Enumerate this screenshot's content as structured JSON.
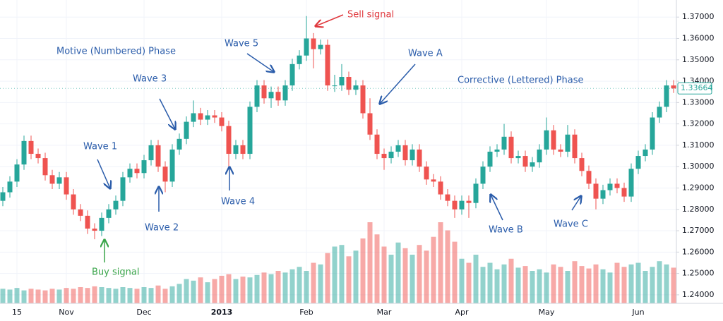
{
  "chart_data": {
    "type": "candlestick",
    "categories": [
      null,
      null,
      "15",
      null,
      null,
      null,
      null,
      null,
      null,
      "Nov",
      null,
      null,
      null,
      null,
      null,
      null,
      null,
      null,
      null,
      null,
      "Dec",
      null,
      null,
      null,
      null,
      null,
      null,
      null,
      null,
      null,
      null,
      "2013",
      null,
      null,
      null,
      null,
      null,
      null,
      null,
      null,
      null,
      null,
      null,
      "Feb",
      null,
      null,
      null,
      null,
      null,
      null,
      null,
      null,
      null,
      null,
      "Mar",
      null,
      null,
      null,
      null,
      null,
      null,
      null,
      null,
      null,
      null,
      "Apr",
      null,
      null,
      null,
      null,
      null,
      null,
      null,
      null,
      null,
      null,
      null,
      "May",
      null,
      null,
      null,
      null,
      null,
      null,
      null,
      null,
      null,
      null,
      null,
      null,
      "Jun",
      null,
      null,
      null,
      null,
      null
    ],
    "open": [
      1.284,
      1.288,
      1.293,
      1.301,
      1.312,
      1.306,
      1.304,
      1.296,
      1.292,
      1.295,
      1.287,
      1.28,
      1.277,
      1.271,
      1.27,
      1.276,
      1.28,
      1.284,
      1.295,
      1.299,
      1.297,
      1.303,
      1.31,
      1.3,
      1.293,
      1.308,
      1.313,
      1.321,
      1.325,
      1.322,
      1.324,
      1.323,
      1.319,
      1.306,
      1.31,
      1.306,
      1.328,
      1.338,
      1.332,
      1.335,
      1.331,
      1.338,
      1.348,
      1.352,
      1.36,
      1.355,
      1.357,
      1.338,
      1.338,
      1.342,
      1.336,
      1.338,
      1.325,
      1.315,
      1.306,
      1.304,
      1.307,
      1.31,
      1.303,
      1.308,
      1.3,
      1.294,
      1.293,
      1.287,
      1.284,
      1.28,
      1.284,
      1.283,
      1.292,
      1.3,
      1.307,
      1.308,
      1.314,
      1.304,
      1.305,
      1.3,
      1.302,
      1.308,
      1.317,
      1.308,
      1.307,
      1.315,
      1.304,
      1.298,
      1.292,
      1.285,
      1.289,
      1.292,
      1.29,
      1.286,
      1.299,
      1.305,
      1.308,
      1.323,
      1.328,
      1.338
    ],
    "high": [
      1.2905,
      1.2955,
      1.3035,
      1.3145,
      1.3145,
      1.3085,
      1.3065,
      1.2985,
      1.2975,
      1.2975,
      1.2895,
      1.2825,
      1.2795,
      1.2735,
      1.2785,
      1.2825,
      1.2865,
      1.2975,
      1.3015,
      1.3015,
      1.3055,
      1.3125,
      1.3125,
      1.3025,
      1.3105,
      1.3155,
      1.3235,
      1.331,
      1.3275,
      1.3265,
      1.3265,
      1.3255,
      1.3215,
      1.3125,
      1.3125,
      1.3305,
      1.3405,
      1.3405,
      1.3375,
      1.3375,
      1.3405,
      1.3505,
      1.3545,
      1.3705,
      1.3625,
      1.3595,
      1.3595,
      1.343,
      1.348,
      1.3445,
      1.3405,
      1.3405,
      1.332,
      1.3175,
      1.3085,
      1.3095,
      1.3125,
      1.3125,
      1.3105,
      1.3105,
      1.3025,
      1.2965,
      1.2955,
      1.2895,
      1.2865,
      1.2865,
      1.2865,
      1.2945,
      1.3025,
      1.3095,
      1.3105,
      1.32,
      1.3165,
      1.3075,
      1.3075,
      1.3045,
      1.3105,
      1.323,
      1.3195,
      1.3105,
      1.3195,
      1.3175,
      1.3065,
      1.3005,
      1.2945,
      1.2915,
      1.2945,
      1.2945,
      1.2925,
      1.3015,
      1.3075,
      1.3105,
      1.3255,
      1.3305,
      1.3405,
      1.3405
    ],
    "low": [
      1.2815,
      1.2855,
      1.2905,
      1.2985,
      1.3035,
      1.3015,
      1.2935,
      1.2895,
      1.2895,
      1.2845,
      1.2775,
      1.2745,
      1.2685,
      1.266,
      1.2675,
      1.2735,
      1.2775,
      1.2815,
      1.2925,
      1.2945,
      1.2945,
      1.3005,
      1.2975,
      1.288,
      1.2905,
      1.3055,
      1.3105,
      1.3185,
      1.3195,
      1.3195,
      1.3205,
      1.3165,
      1.3,
      1.3035,
      1.3035,
      1.3035,
      1.3255,
      1.3295,
      1.3275,
      1.3285,
      1.3285,
      1.3355,
      1.3455,
      1.3495,
      1.346,
      1.3525,
      1.3355,
      1.335,
      1.3355,
      1.3335,
      1.3335,
      1.3225,
      1.3125,
      1.3035,
      1.2985,
      1.3015,
      1.3045,
      1.3005,
      1.3005,
      1.2975,
      1.2915,
      1.2905,
      1.2845,
      1.2815,
      1.276,
      1.2775,
      1.276,
      1.2805,
      1.2895,
      1.2975,
      1.3045,
      1.3055,
      1.3015,
      1.3015,
      1.2975,
      1.2975,
      1.2995,
      1.3055,
      1.3055,
      1.3045,
      1.3045,
      1.3015,
      1.2955,
      1.2895,
      1.28,
      1.2825,
      1.2865,
      1.2875,
      1.2835,
      1.2835,
      1.2965,
      1.3025,
      1.3055,
      1.3205,
      1.3255,
      1.3345
    ],
    "close": [
      1.288,
      1.293,
      1.301,
      1.312,
      1.306,
      1.304,
      1.296,
      1.292,
      1.295,
      1.287,
      1.28,
      1.277,
      1.271,
      1.27,
      1.276,
      1.28,
      1.284,
      1.295,
      1.299,
      1.297,
      1.303,
      1.31,
      1.3,
      1.293,
      1.308,
      1.313,
      1.321,
      1.325,
      1.322,
      1.324,
      1.323,
      1.319,
      1.306,
      1.31,
      1.306,
      1.328,
      1.338,
      1.332,
      1.335,
      1.331,
      1.338,
      1.348,
      1.352,
      1.36,
      1.355,
      1.357,
      1.338,
      1.338,
      1.342,
      1.336,
      1.338,
      1.325,
      1.315,
      1.306,
      1.304,
      1.307,
      1.31,
      1.303,
      1.308,
      1.3,
      1.294,
      1.293,
      1.287,
      1.284,
      1.28,
      1.284,
      1.283,
      1.292,
      1.3,
      1.307,
      1.308,
      1.314,
      1.304,
      1.305,
      1.3,
      1.302,
      1.308,
      1.317,
      1.308,
      1.307,
      1.315,
      1.304,
      1.298,
      1.292,
      1.285,
      1.289,
      1.292,
      1.29,
      1.286,
      1.299,
      1.305,
      1.308,
      1.323,
      1.328,
      1.338,
      1.3366
    ],
    "volume": [
      18,
      17,
      19,
      16,
      18,
      17,
      16,
      18,
      17,
      19,
      18,
      20,
      19,
      21,
      20,
      19,
      18,
      20,
      19,
      18,
      20,
      19,
      22,
      18,
      21,
      24,
      30,
      28,
      32,
      26,
      30,
      34,
      36,
      30,
      33,
      32,
      35,
      38,
      36,
      40,
      38,
      42,
      45,
      40,
      50,
      48,
      62,
      70,
      72,
      58,
      65,
      80,
      100,
      85,
      70,
      60,
      75,
      68,
      60,
      72,
      65,
      82,
      100,
      90,
      76,
      55,
      50,
      60,
      45,
      50,
      42,
      48,
      55,
      44,
      46,
      40,
      42,
      38,
      48,
      45,
      40,
      52,
      46,
      43,
      48,
      42,
      38,
      50,
      45,
      48,
      50,
      40,
      45,
      52,
      48,
      44
    ],
    "up_color": "#26a69a",
    "down_color": "#ef5350",
    "ylim": [
      1.236,
      1.378
    ],
    "yticks": [
      {
        "value": 1.37,
        "label": "1.37000"
      },
      {
        "value": 1.36,
        "label": "1.36000"
      },
      {
        "value": 1.35,
        "label": "1.35000"
      },
      {
        "value": 1.34,
        "label": "1.34000"
      },
      {
        "value": 1.33,
        "label": "1.33000"
      },
      {
        "value": 1.32,
        "label": "1.32000"
      },
      {
        "value": 1.31,
        "label": "1.31000"
      },
      {
        "value": 1.3,
        "label": "1.30000"
      },
      {
        "value": 1.29,
        "label": "1.29000"
      },
      {
        "value": 1.28,
        "label": "1.28000"
      },
      {
        "value": 1.27,
        "label": "1.27000"
      },
      {
        "value": 1.26,
        "label": "1.26000"
      },
      {
        "value": 1.25,
        "label": "1.25000"
      },
      {
        "value": 1.24,
        "label": "1.24000"
      }
    ],
    "last_price": {
      "value": 1.33664,
      "label": "1.33664"
    },
    "grid": true,
    "annotations": [
      "Motive (Numbered) Phase",
      "Wave 1",
      "Wave 2",
      "Wave 3",
      "Wave 4",
      "Wave 5",
      "Sell signal",
      "Buy signal",
      "Wave A",
      "Corrective (Lettered) Phase",
      "Wave B",
      "Wave C"
    ]
  }
}
